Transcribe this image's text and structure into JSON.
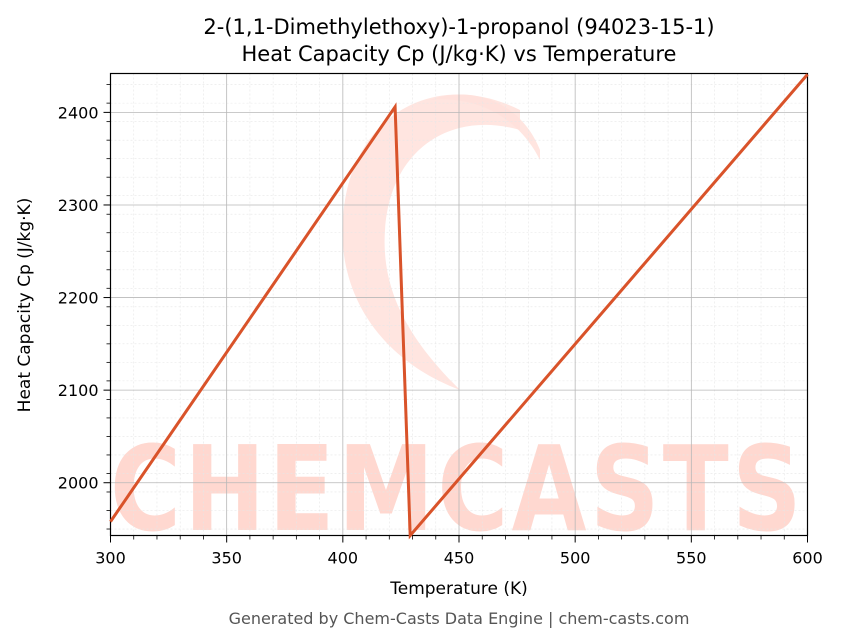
{
  "chart_data": {
    "type": "line",
    "title": "2-(1,1-Dimethylethoxy)-1-propanol (94023-15-1)",
    "subtitle": "Heat Capacity Cp (J/kg·K) vs Temperature",
    "xlabel": "Temperature (K)",
    "ylabel": "Heat Capacity Cp (J/kg·K)",
    "xlim": [
      300,
      600
    ],
    "ylim": [
      1943,
      2442
    ],
    "xticks": [
      300,
      350,
      400,
      450,
      500,
      550,
      600
    ],
    "yticks": [
      2000,
      2100,
      2200,
      2300,
      2400
    ],
    "grid": true,
    "line_color": "#d9532a",
    "series": [
      {
        "x": [
          300,
          422.5,
          429,
          600
        ],
        "y": [
          1958,
          2406,
          1943,
          2441
        ]
      }
    ]
  },
  "watermark": {
    "text": "CHEMCASTS",
    "color": "#ffd8d0"
  },
  "footer": "Generated by Chem-Casts Data Engine | chem-casts.com"
}
